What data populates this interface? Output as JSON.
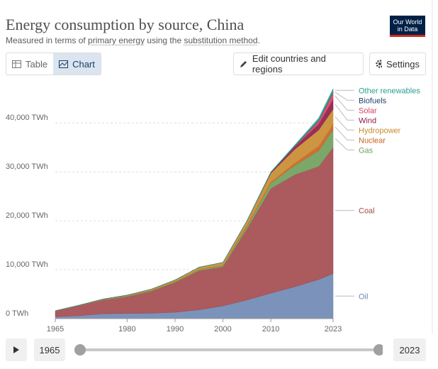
{
  "header": {
    "title": "Energy consumption by source, China",
    "subtitle_parts": [
      "Measured in terms of ",
      "primary energy",
      " using the ",
      "substitution method",
      "."
    ],
    "logo": "Our World in Data"
  },
  "controls": {
    "table": "Table",
    "chart": "Chart",
    "edit": "Edit countries and regions",
    "settings": "Settings"
  },
  "timeline": {
    "start": "1965",
    "end": "2023"
  },
  "chart_data": {
    "type": "area",
    "stacked": true,
    "x": [
      1965,
      1970,
      1975,
      1980,
      1985,
      1990,
      1995,
      2000,
      2005,
      2010,
      2015,
      2020,
      2023
    ],
    "xlim": [
      1965,
      2023
    ],
    "xticks": [
      1965,
      1980,
      1990,
      2000,
      2010,
      2023
    ],
    "ylim": [
      0,
      48000
    ],
    "yticks": [
      {
        "value": 0,
        "label": "0 TWh"
      },
      {
        "value": 10000,
        "label": "10,000 TWh"
      },
      {
        "value": 20000,
        "label": "20,000 TWh"
      },
      {
        "value": 30000,
        "label": "30,000 TWh"
      },
      {
        "value": 40000,
        "label": "40,000 TWh"
      }
    ],
    "grid": true,
    "series": [
      {
        "name": "Oil",
        "color": "#6d87b3",
        "values": [
          400,
          600,
          1000,
          1050,
          1100,
          1300,
          1800,
          2600,
          3800,
          5200,
          6500,
          8000,
          9200
        ]
      },
      {
        "name": "Coal",
        "color": "#a2484d",
        "values": [
          1150,
          2060,
          2800,
          3440,
          4500,
          6110,
          7990,
          8000,
          14500,
          21400,
          22900,
          23120,
          25800
        ]
      },
      {
        "name": "Gas",
        "color": "#6d9e5a",
        "values": [
          10,
          30,
          80,
          160,
          150,
          170,
          200,
          280,
          500,
          1100,
          1900,
          3200,
          3600
        ]
      },
      {
        "name": "Nuclear",
        "color": "#c9611f",
        "values": [
          0,
          0,
          0,
          0,
          0,
          0,
          40,
          50,
          150,
          220,
          500,
          950,
          1100
        ]
      },
      {
        "name": "Hydropower",
        "color": "#c8892c",
        "values": [
          40,
          60,
          120,
          150,
          250,
          320,
          470,
          560,
          1000,
          1800,
          2800,
          3300,
          3100
        ]
      },
      {
        "name": "Wind",
        "color": "#8b1a47",
        "values": [
          0,
          0,
          0,
          0,
          0,
          0,
          0,
          0,
          5,
          120,
          480,
          1200,
          2000
        ]
      },
      {
        "name": "Solar",
        "color": "#d63f5c",
        "values": [
          0,
          0,
          0,
          0,
          0,
          0,
          0,
          0,
          0,
          5,
          110,
          650,
          1400
        ]
      },
      {
        "name": "Biofuels",
        "color": "#1f3e6b",
        "values": [
          0,
          0,
          0,
          0,
          0,
          0,
          0,
          0,
          20,
          50,
          60,
          80,
          100
        ]
      },
      {
        "name": "Other renewables",
        "color": "#2a9d8f",
        "values": [
          0,
          0,
          0,
          0,
          0,
          0,
          0,
          10,
          30,
          100,
          250,
          500,
          700
        ]
      }
    ]
  }
}
